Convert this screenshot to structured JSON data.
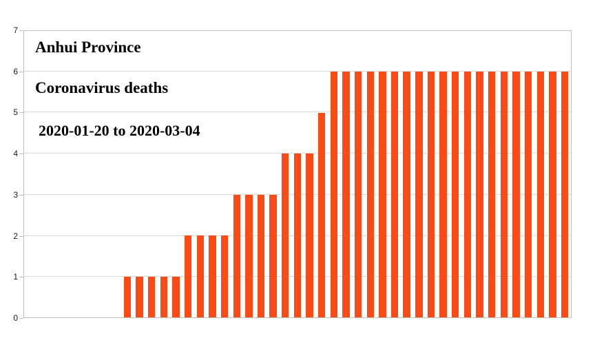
{
  "title": "Anhui Province",
  "subtitle": "Coronavirus deaths",
  "date_range": "2020-01-20 to 2020-03-04",
  "colors": {
    "bar": "#FA4A16",
    "gridline": "#D9D9D9",
    "axis_border": "#BFBFBF",
    "text": "#000000"
  },
  "chart_data": {
    "type": "bar",
    "title": "Anhui Province",
    "subtitle": "Coronavirus deaths",
    "date_range_label": "2020-01-20 to 2020-03-04",
    "x_start_date": "2020-01-20",
    "x_end_date": "2020-03-04",
    "x_tick_labels": [],
    "xlabel": "",
    "ylabel": "",
    "ylim": [
      0,
      7
    ],
    "yticks": [
      0,
      1,
      2,
      3,
      4,
      5,
      6,
      7
    ],
    "grid": true,
    "legend": "none",
    "bar_color": "#FA4A16",
    "values": [
      0,
      0,
      0,
      0,
      0,
      0,
      0,
      0,
      1,
      1,
      1,
      1,
      1,
      2,
      2,
      2,
      2,
      3,
      3,
      3,
      3,
      4,
      4,
      4,
      5,
      6,
      6,
      6,
      6,
      6,
      6,
      6,
      6,
      6,
      6,
      6,
      6,
      6,
      6,
      6,
      6,
      6,
      6,
      6,
      6
    ]
  }
}
